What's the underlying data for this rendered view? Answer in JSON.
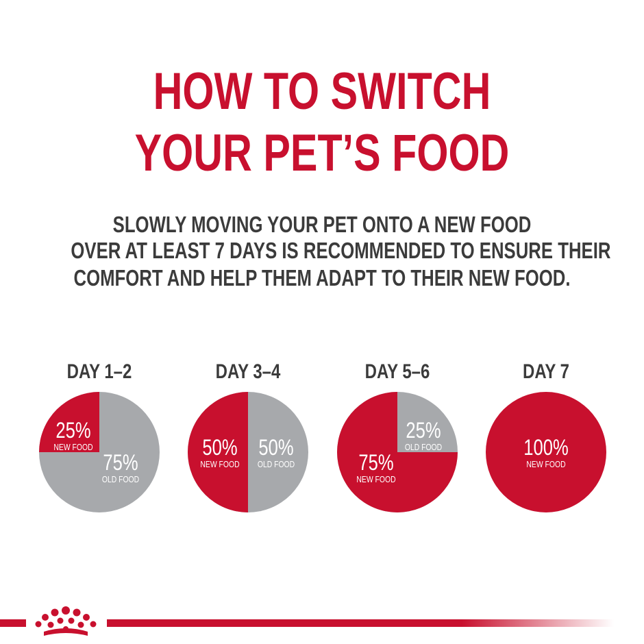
{
  "header": {
    "title_line1": "HOW TO SWITCH",
    "title_line2": "YOUR PET’S FOOD",
    "subtitle_line1": "SLOWLY MOVING YOUR PET ONTO A NEW FOOD",
    "subtitle_line2": "OVER AT LEAST 7 DAYS IS RECOMMENDED TO ENSURE THEIR",
    "subtitle_line3": "COMFORT AND HELP THEM ADAPT TO THEIR NEW FOOD."
  },
  "colors": {
    "brand_red": "#c8102e",
    "old_food_grey": "#a7a9ac",
    "text_dark": "#3b3b3b"
  },
  "logo": {
    "icon": "royal-canin-crown-icon"
  },
  "chart_data": [
    {
      "type": "pie",
      "title": "DAY 1–2",
      "slices": [
        {
          "label": "NEW FOOD",
          "value": 25,
          "display": "25%",
          "color": "#c8102e"
        },
        {
          "label": "OLD FOOD",
          "value": 75,
          "display": "75%",
          "color": "#a7a9ac"
        }
      ]
    },
    {
      "type": "pie",
      "title": "DAY 3–4",
      "slices": [
        {
          "label": "NEW FOOD",
          "value": 50,
          "display": "50%",
          "color": "#c8102e"
        },
        {
          "label": "OLD FOOD",
          "value": 50,
          "display": "50%",
          "color": "#a7a9ac"
        }
      ]
    },
    {
      "type": "pie",
      "title": "DAY 5–6",
      "slices": [
        {
          "label": "NEW FOOD",
          "value": 75,
          "display": "75%",
          "color": "#c8102e"
        },
        {
          "label": "OLD FOOD",
          "value": 25,
          "display": "25%",
          "color": "#a7a9ac"
        }
      ]
    },
    {
      "type": "pie",
      "title": "DAY 7",
      "slices": [
        {
          "label": "NEW FOOD",
          "value": 100,
          "display": "100%",
          "color": "#c8102e"
        }
      ]
    }
  ]
}
